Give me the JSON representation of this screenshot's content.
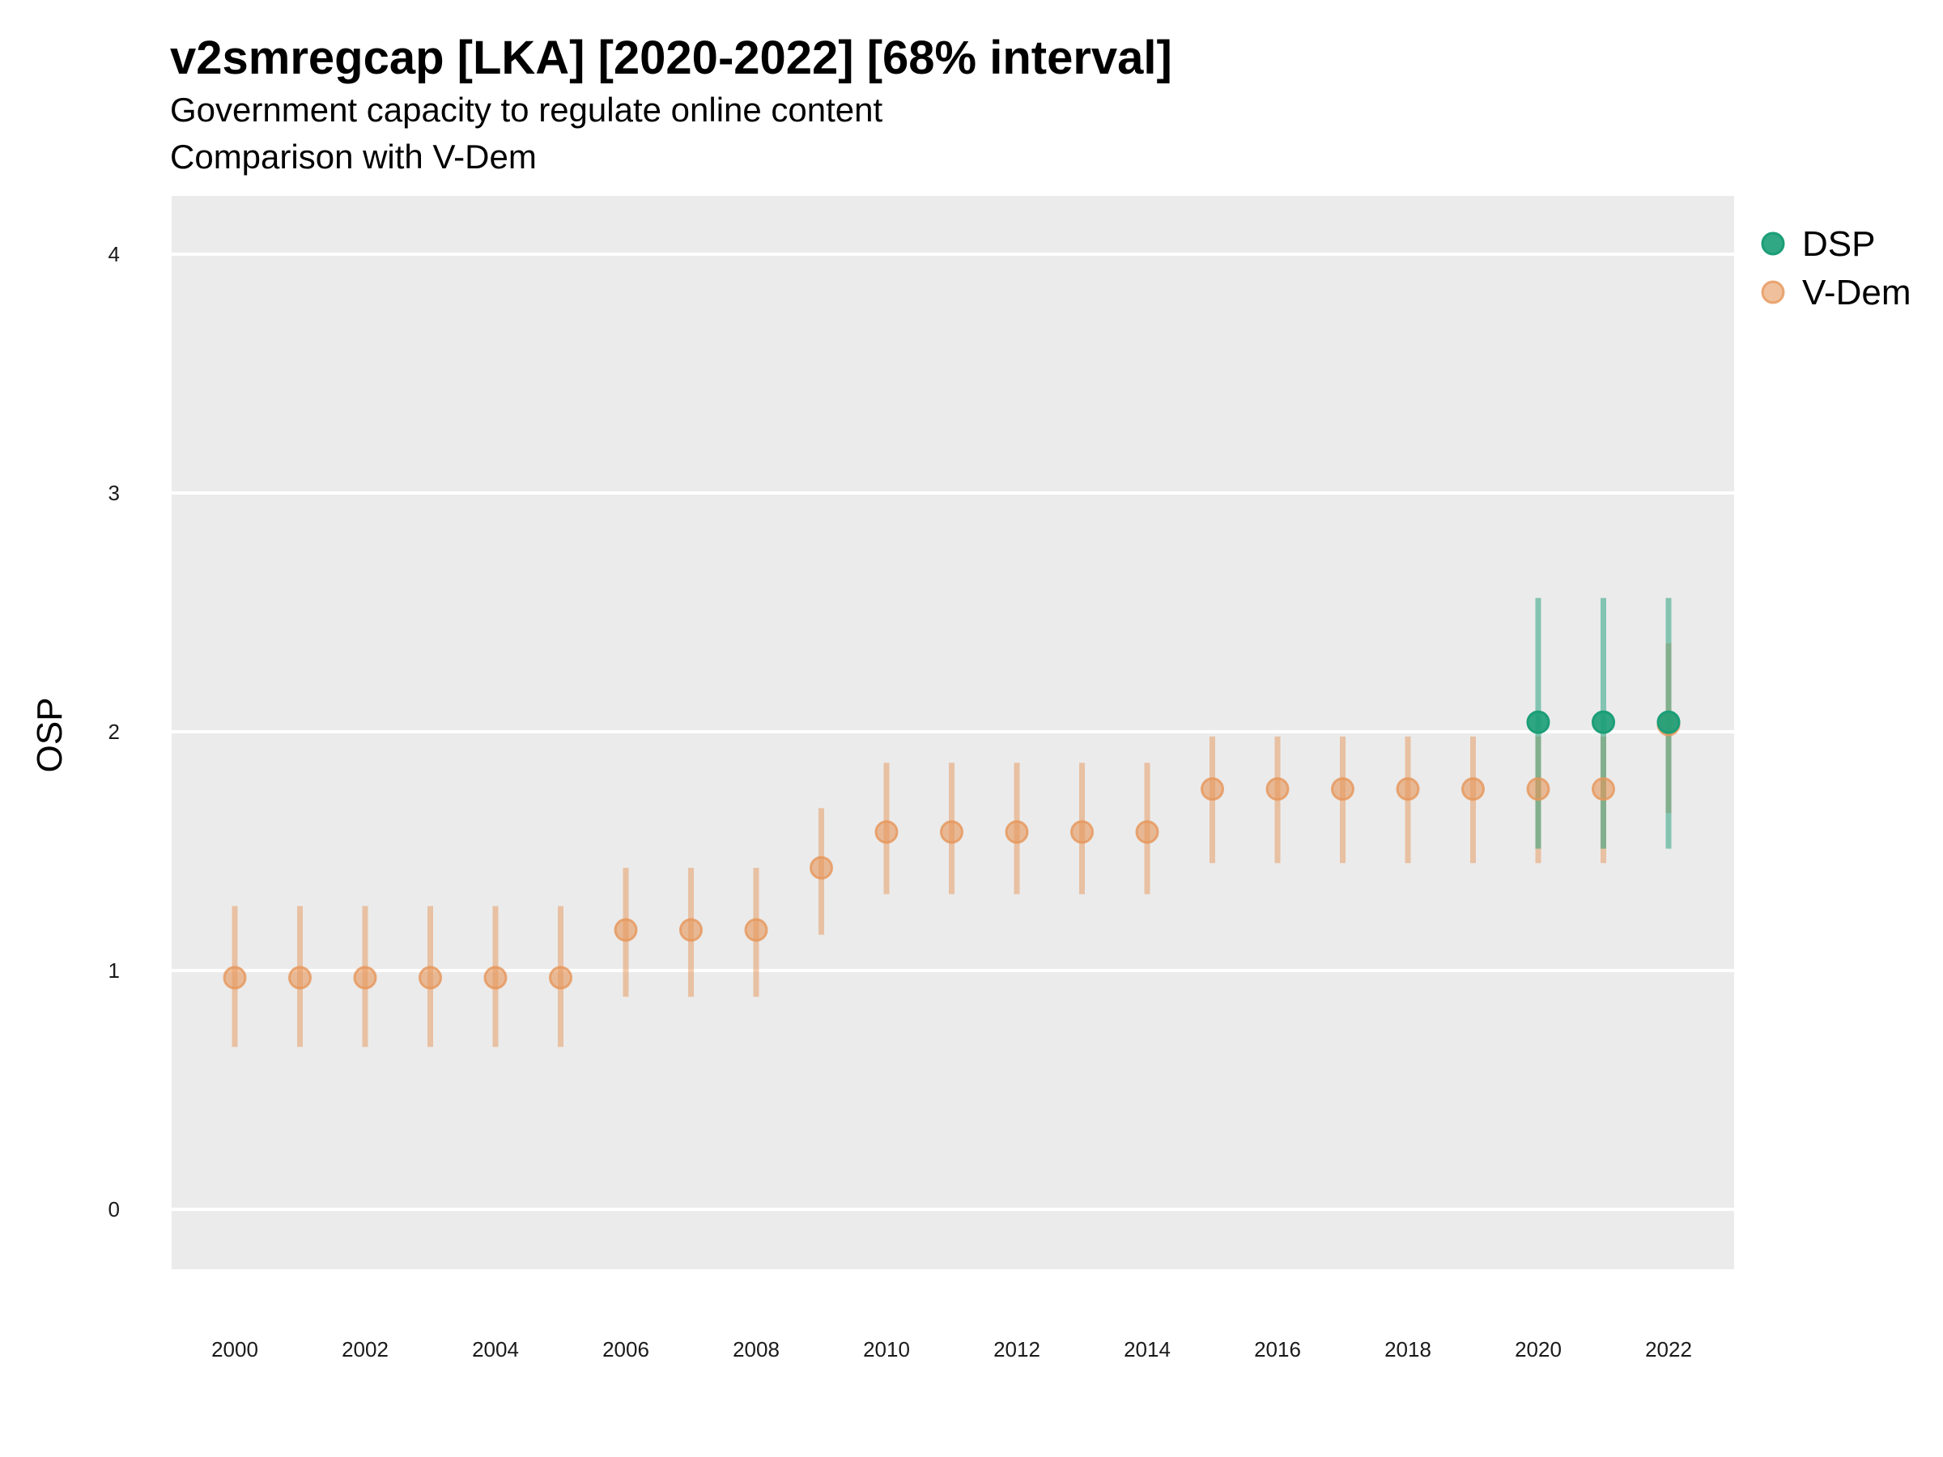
{
  "title": "v2smregcap [LKA] [2020-2022] [68% interval]",
  "subtitle_lines": [
    "Government capacity to regulate online content",
    "Comparison with V-Dem"
  ],
  "chart_data": {
    "type": "scatter",
    "ylabel": "OSP",
    "xlabel": "",
    "xlim": [
      1999,
      2023
    ],
    "ylim": [
      -0.25,
      4.25
    ],
    "x_ticks": [
      2000,
      2002,
      2004,
      2006,
      2008,
      2010,
      2012,
      2014,
      2016,
      2018,
      2020,
      2022
    ],
    "y_ticks": [
      0,
      1,
      2,
      3,
      4
    ],
    "grid": true,
    "legend_position": "right-top",
    "series": [
      {
        "name": "V-Dem",
        "color": "#E6965A",
        "x": [
          2000,
          2001,
          2002,
          2003,
          2004,
          2005,
          2006,
          2007,
          2008,
          2009,
          2010,
          2011,
          2012,
          2013,
          2014,
          2015,
          2016,
          2017,
          2018,
          2019,
          2020,
          2021,
          2022
        ],
        "y": [
          0.97,
          0.97,
          0.97,
          0.97,
          0.97,
          0.97,
          1.17,
          1.17,
          1.17,
          1.43,
          1.58,
          1.58,
          1.58,
          1.58,
          1.58,
          1.76,
          1.76,
          1.76,
          1.76,
          1.76,
          1.76,
          1.76,
          2.03
        ],
        "lower": [
          0.68,
          0.68,
          0.68,
          0.68,
          0.68,
          0.68,
          0.89,
          0.89,
          0.89,
          1.15,
          1.32,
          1.32,
          1.32,
          1.32,
          1.32,
          1.45,
          1.45,
          1.45,
          1.45,
          1.45,
          1.45,
          1.45,
          1.66
        ],
        "upper": [
          1.27,
          1.27,
          1.27,
          1.27,
          1.27,
          1.27,
          1.43,
          1.43,
          1.43,
          1.68,
          1.87,
          1.87,
          1.87,
          1.87,
          1.87,
          1.98,
          1.98,
          1.98,
          1.98,
          1.98,
          1.98,
          1.98,
          2.37
        ]
      },
      {
        "name": "DSP",
        "color": "#1B9E77",
        "x": [
          2020,
          2021,
          2022
        ],
        "y": [
          2.04,
          2.04,
          2.04
        ],
        "lower": [
          1.51,
          1.51,
          1.51
        ],
        "upper": [
          2.56,
          2.56,
          2.56
        ]
      }
    ],
    "legend": [
      {
        "label": "DSP",
        "color": "#1B9E77"
      },
      {
        "label": "V-Dem",
        "color": "#E6965A"
      }
    ]
  }
}
